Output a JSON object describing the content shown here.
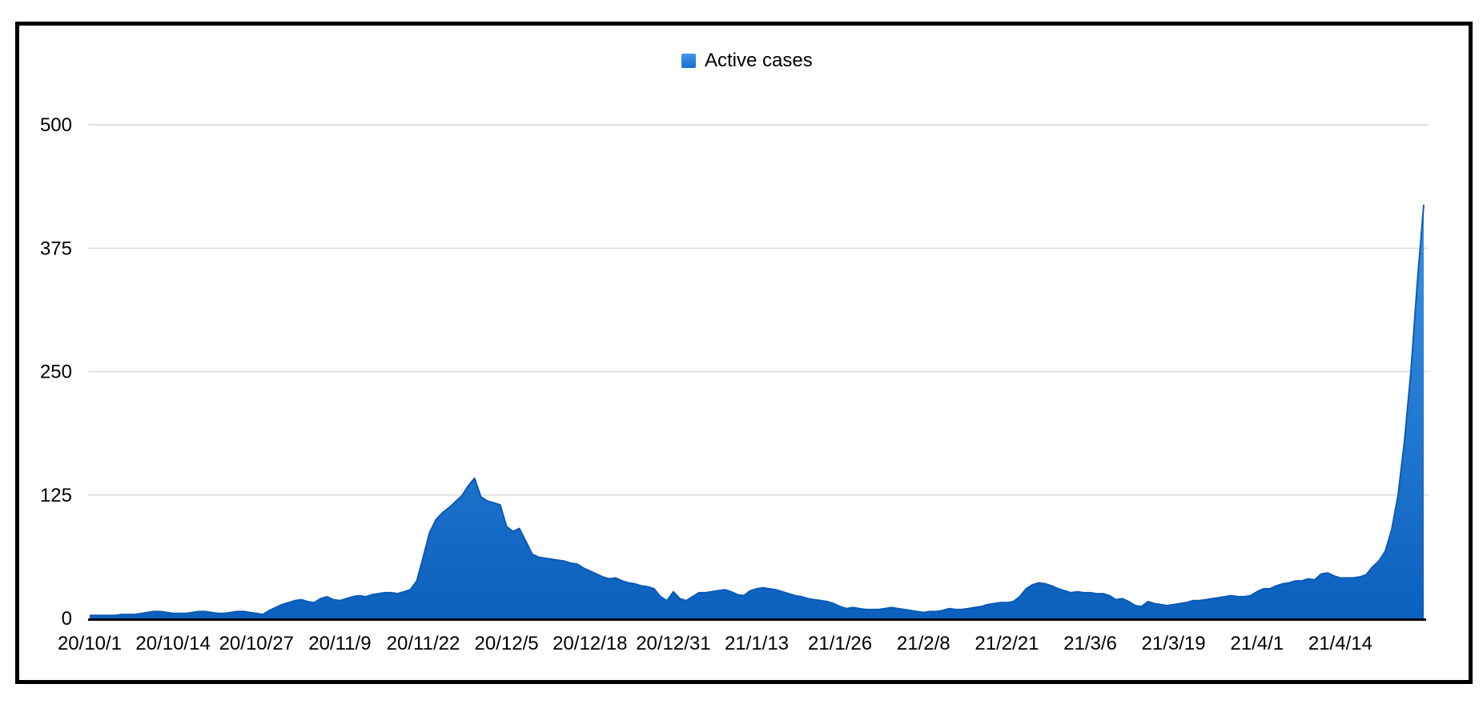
{
  "figure": {
    "background": "#ffffff",
    "frame_color": "#000000",
    "gridline_color": "#d9d9d9",
    "axis_line_color": "#000000",
    "label_color": "#000000"
  },
  "legend": {
    "label": "Active cases",
    "swatch_color_top": "#3F96E9",
    "swatch_color_bottom": "#1A70CE"
  },
  "chart_data": {
    "type": "area",
    "title": "",
    "series_name": "Active cases",
    "x_frequency": "daily",
    "x_tick_indices": [
      0,
      13,
      26,
      39,
      52,
      65,
      78,
      91,
      104,
      117,
      130,
      143,
      156,
      169,
      182,
      195
    ],
    "x_tick_labels": [
      "20/10/1",
      "20/10/14",
      "20/10/27",
      "20/11/9",
      "20/11/22",
      "20/12/5",
      "20/12/18",
      "20/12/31",
      "21/1/13",
      "21/1/26",
      "21/2/8",
      "21/2/21",
      "21/3/6",
      "21/3/19",
      "21/4/1",
      "21/4/14"
    ],
    "y_ticks": [
      0,
      125,
      250,
      375,
      500
    ],
    "ylim": [
      0,
      500
    ],
    "grid": true,
    "legend_position": "top-center",
    "area_color_top": "#459CEB",
    "area_color_bottom": "#0C60BE",
    "line_color": "#0B5AB5",
    "values": [
      3,
      3,
      3,
      3,
      3,
      4,
      4,
      4,
      5,
      6,
      7,
      7,
      6,
      5,
      5,
      5,
      6,
      7,
      7,
      6,
      5,
      5,
      6,
      7,
      7,
      6,
      5,
      4,
      8,
      11,
      14,
      16,
      18,
      19,
      17,
      16,
      20,
      22,
      19,
      18,
      20,
      22,
      23,
      22,
      24,
      25,
      26,
      26,
      25,
      27,
      29,
      38,
      62,
      87,
      100,
      107,
      112,
      118,
      124,
      134,
      142,
      123,
      119,
      117,
      115,
      93,
      88,
      91,
      78,
      65,
      62,
      61,
      60,
      59,
      58,
      56,
      55,
      51,
      48,
      45,
      42,
      40,
      41,
      38,
      36,
      35,
      33,
      32,
      30,
      22,
      18,
      27,
      20,
      18,
      22,
      26,
      26,
      27,
      28,
      29,
      27,
      24,
      23,
      28,
      30,
      31,
      30,
      29,
      27,
      25,
      23,
      22,
      20,
      19,
      18,
      17,
      15,
      12,
      10,
      11,
      10,
      9,
      9,
      9,
      10,
      11,
      10,
      9,
      8,
      7,
      6,
      7,
      7,
      8,
      10,
      9,
      9,
      10,
      11,
      12,
      14,
      15,
      16,
      16,
      17,
      22,
      30,
      34,
      36,
      35,
      33,
      30,
      28,
      26,
      27,
      26,
      26,
      25,
      25,
      23,
      19,
      20,
      17,
      13,
      12,
      17,
      15,
      14,
      13,
      14,
      15,
      16,
      18,
      18,
      19,
      20,
      21,
      22,
      23,
      22,
      22,
      23,
      27,
      30,
      30,
      33,
      35,
      36,
      38,
      38,
      40,
      39,
      45,
      46,
      43,
      41,
      41,
      41,
      42,
      44,
      52,
      58,
      68,
      90,
      125,
      180,
      250,
      340,
      419
    ]
  }
}
